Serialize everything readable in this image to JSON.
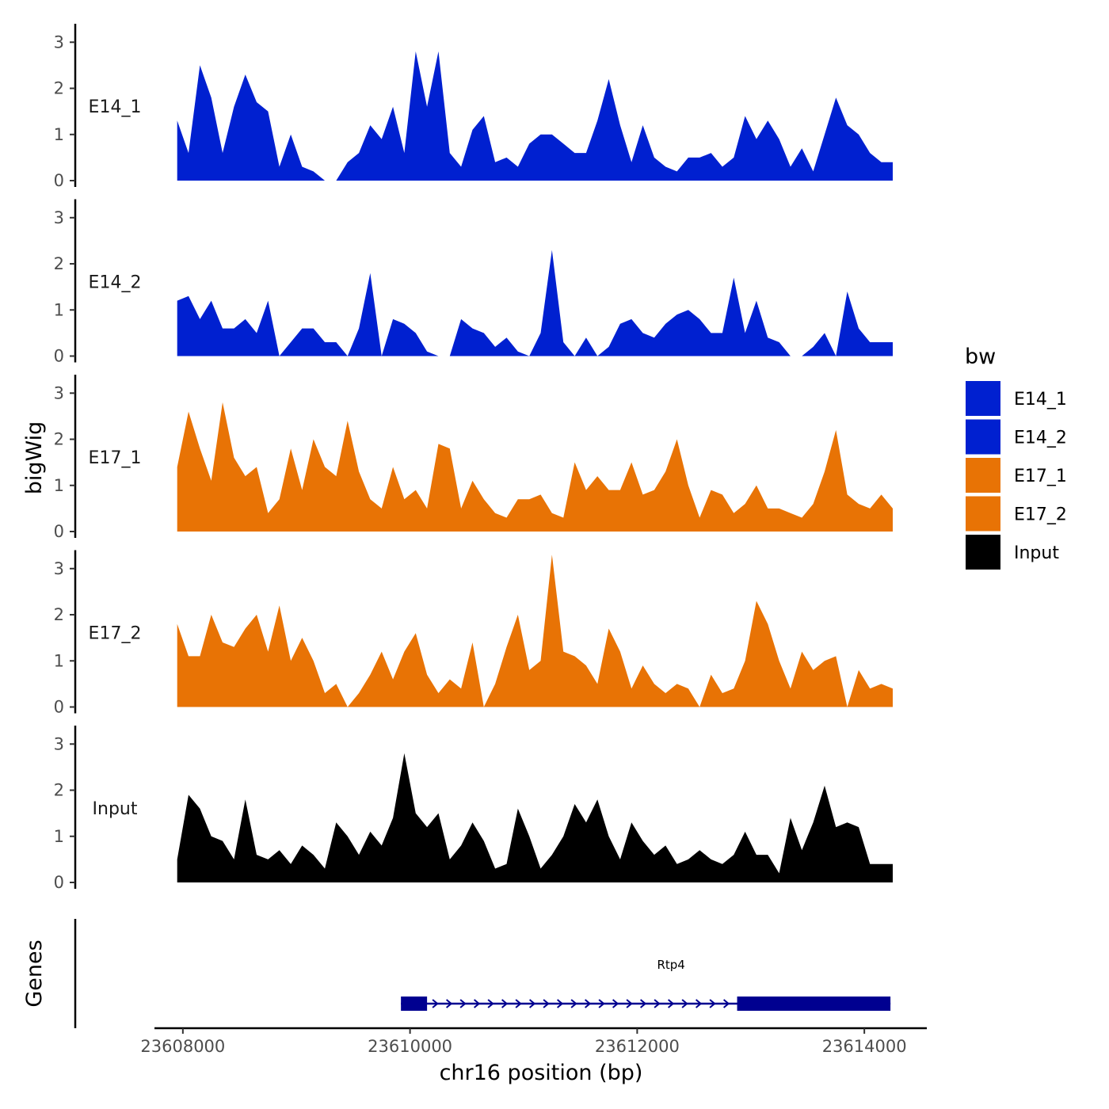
{
  "chart_data": {
    "type": "area",
    "x_axis": {
      "label": "chr16 position (bp)",
      "range": [
        23607750,
        23614550
      ],
      "ticks": [
        23608000,
        23610000,
        23612000,
        23614000
      ],
      "tick_labels": [
        "23608000",
        "23610000",
        "23612000",
        "23614000"
      ]
    },
    "y_axis": {
      "label": "bigWig",
      "range": [
        0,
        3.4
      ],
      "ticks": [
        0,
        1,
        2,
        3
      ],
      "tick_labels": [
        "0",
        "1",
        "2",
        "3"
      ]
    },
    "x": [
      23607950,
      23608050,
      23608150,
      23608250,
      23608350,
      23608450,
      23608550,
      23608650,
      23608750,
      23608850,
      23608950,
      23609050,
      23609150,
      23609250,
      23609350,
      23609450,
      23609550,
      23609650,
      23609750,
      23609850,
      23609950,
      23610050,
      23610150,
      23610250,
      23610350,
      23610450,
      23610550,
      23610650,
      23610750,
      23610850,
      23610950,
      23611050,
      23611150,
      23611250,
      23611350,
      23611450,
      23611550,
      23611650,
      23611750,
      23611850,
      23611950,
      23612050,
      23612150,
      23612250,
      23612350,
      23612450,
      23612550,
      23612650,
      23612750,
      23612850,
      23612950,
      23613050,
      23613150,
      23613250,
      23613350,
      23613450,
      23613550,
      23613650,
      23613750,
      23613850,
      23613950,
      23614050,
      23614150,
      23614250
    ],
    "series": [
      {
        "name": "E14_1",
        "color": "#0020d0",
        "values": [
          1.3,
          0.6,
          2.5,
          1.8,
          0.6,
          1.6,
          2.3,
          1.7,
          1.5,
          0.3,
          1.0,
          0.3,
          0.2,
          0.0,
          0.0,
          0.4,
          0.6,
          1.2,
          0.9,
          1.6,
          0.6,
          2.8,
          1.6,
          2.8,
          0.6,
          0.3,
          1.1,
          1.4,
          0.4,
          0.5,
          0.3,
          0.8,
          1.0,
          1.0,
          0.8,
          0.6,
          0.6,
          1.3,
          2.2,
          1.2,
          0.4,
          1.2,
          0.5,
          0.3,
          0.2,
          0.5,
          0.5,
          0.6,
          0.3,
          0.5,
          1.4,
          0.9,
          1.3,
          0.9,
          0.3,
          0.7,
          0.2,
          1.0,
          1.8,
          1.2,
          1.0,
          0.6,
          0.4,
          0.4
        ]
      },
      {
        "name": "E14_2",
        "color": "#0020d0",
        "values": [
          1.2,
          1.3,
          0.8,
          1.2,
          0.6,
          0.6,
          0.8,
          0.5,
          1.2,
          0.0,
          0.3,
          0.6,
          0.6,
          0.3,
          0.3,
          0.0,
          0.6,
          1.8,
          0.0,
          0.8,
          0.7,
          0.5,
          0.1,
          0.0,
          0.0,
          0.8,
          0.6,
          0.5,
          0.2,
          0.4,
          0.1,
          0.0,
          0.5,
          2.3,
          0.3,
          0.0,
          0.4,
          0.0,
          0.2,
          0.7,
          0.8,
          0.5,
          0.4,
          0.7,
          0.9,
          1.0,
          0.8,
          0.5,
          0.5,
          1.7,
          0.5,
          1.2,
          0.4,
          0.3,
          0.0,
          0.0,
          0.2,
          0.5,
          0.0,
          1.4,
          0.6,
          0.3,
          0.3,
          0.3
        ]
      },
      {
        "name": "E17_1",
        "color": "#e87305",
        "values": [
          1.4,
          2.6,
          1.8,
          1.1,
          2.8,
          1.6,
          1.2,
          1.4,
          0.4,
          0.7,
          1.8,
          0.9,
          2.0,
          1.4,
          1.2,
          2.4,
          1.3,
          0.7,
          0.5,
          1.4,
          0.7,
          0.9,
          0.5,
          1.9,
          1.8,
          0.5,
          1.1,
          0.7,
          0.4,
          0.3,
          0.7,
          0.7,
          0.8,
          0.4,
          0.3,
          1.5,
          0.9,
          1.2,
          0.9,
          0.9,
          1.5,
          0.8,
          0.9,
          1.3,
          2.0,
          1.0,
          0.3,
          0.9,
          0.8,
          0.4,
          0.6,
          1.0,
          0.5,
          0.5,
          0.4,
          0.3,
          0.6,
          1.3,
          2.2,
          0.8,
          0.6,
          0.5,
          0.8,
          0.5
        ]
      },
      {
        "name": "E17_2",
        "color": "#e87305",
        "values": [
          1.8,
          1.1,
          1.1,
          2.0,
          1.4,
          1.3,
          1.7,
          2.0,
          1.2,
          2.2,
          1.0,
          1.5,
          1.0,
          0.3,
          0.5,
          0.0,
          0.3,
          0.7,
          1.2,
          0.6,
          1.2,
          1.6,
          0.7,
          0.3,
          0.6,
          0.4,
          1.4,
          0.0,
          0.5,
          1.3,
          2.0,
          0.8,
          1.0,
          3.3,
          1.2,
          1.1,
          0.9,
          0.5,
          1.7,
          1.2,
          0.4,
          0.9,
          0.5,
          0.3,
          0.5,
          0.4,
          0.0,
          0.7,
          0.3,
          0.4,
          1.0,
          2.3,
          1.8,
          1.0,
          0.4,
          1.2,
          0.8,
          1.0,
          1.1,
          0.0,
          0.8,
          0.4,
          0.5,
          0.4
        ]
      },
      {
        "name": "Input",
        "color": "#000000",
        "values": [
          0.5,
          1.9,
          1.6,
          1.0,
          0.9,
          0.5,
          1.8,
          0.6,
          0.5,
          0.7,
          0.4,
          0.8,
          0.6,
          0.3,
          1.3,
          1.0,
          0.6,
          1.1,
          0.8,
          1.4,
          2.8,
          1.5,
          1.2,
          1.5,
          0.5,
          0.8,
          1.3,
          0.9,
          0.3,
          0.4,
          1.6,
          1.0,
          0.3,
          0.6,
          1.0,
          1.7,
          1.3,
          1.8,
          1.0,
          0.5,
          1.3,
          0.9,
          0.6,
          0.8,
          0.4,
          0.5,
          0.7,
          0.5,
          0.4,
          0.6,
          1.1,
          0.6,
          0.6,
          0.2,
          1.4,
          0.7,
          1.3,
          2.1,
          1.2,
          1.3,
          1.2,
          0.4,
          0.4,
          0.4
        ]
      }
    ],
    "legend": {
      "title": "bw",
      "position": "right",
      "entries": [
        {
          "label": "E14_1",
          "color": "#0020d0"
        },
        {
          "label": "E14_2",
          "color": "#0020d0"
        },
        {
          "label": "E17_1",
          "color": "#e87305"
        },
        {
          "label": "E17_2",
          "color": "#e87305"
        },
        {
          "label": "Input",
          "color": "#000000"
        }
      ]
    },
    "genes_track": {
      "label": "Genes",
      "genes": [
        {
          "name": "Rtp4",
          "start": 23609920,
          "end": 23614230,
          "strand": "+",
          "color": "#000090",
          "exons": [
            [
              23609920,
              23610150
            ],
            [
              23612880,
              23614230
            ]
          ]
        }
      ]
    }
  }
}
